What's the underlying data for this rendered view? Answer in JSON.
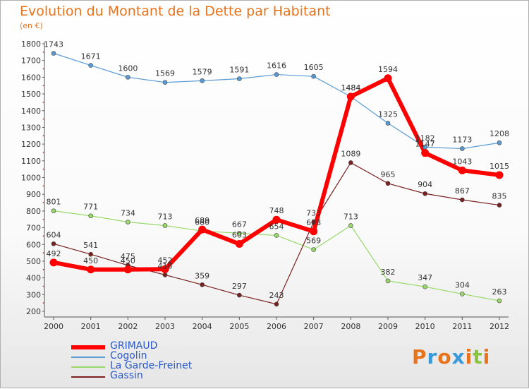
{
  "title": "Evolution du Montant de la Dette par Habitant",
  "subtitle": "(en €)",
  "logo": {
    "letters": [
      "P",
      "r",
      "o",
      "x",
      "i",
      "t",
      "i"
    ],
    "colors": [
      "#e8731c",
      "#3a9ad9",
      "#e8731c",
      "#3a9ad9",
      "#e8731c",
      "#8ac43f",
      "#e8731c"
    ]
  },
  "chart_data": {
    "type": "line",
    "x": [
      "2000",
      "2001",
      "2002",
      "2003",
      "2004",
      "2005",
      "2006",
      "2007",
      "2008",
      "2009",
      "2010",
      "2011",
      "2012"
    ],
    "ylim": [
      200,
      1800
    ],
    "yticks": [
      200,
      300,
      400,
      500,
      600,
      700,
      800,
      900,
      1000,
      1100,
      1200,
      1300,
      1400,
      1500,
      1600,
      1700,
      1800
    ],
    "grid": false,
    "legend_position": "bottom-left",
    "series": [
      {
        "name": "GRIMAUD",
        "color": "#ff0000",
        "values": [
          492,
          450,
          450,
          452,
          689,
          603,
          748,
          678,
          1484,
          1594,
          1147,
          1043,
          1015
        ]
      },
      {
        "name": "Cogolin",
        "color": "#5b9bd5",
        "values": [
          1743,
          1671,
          1600,
          1569,
          1579,
          1591,
          1616,
          1605,
          1484,
          1325,
          1182,
          1173,
          1208
        ]
      },
      {
        "name": "La Garde-Freinet",
        "color": "#99d96a",
        "values": [
          801,
          771,
          734,
          713,
          680,
          667,
          654,
          569,
          713,
          382,
          347,
          304,
          263
        ]
      },
      {
        "name": "Gassin",
        "color": "#7a2020",
        "values": [
          604,
          541,
          475,
          418,
          359,
          297,
          243,
          733,
          1089,
          965,
          904,
          867,
          835
        ]
      }
    ]
  }
}
